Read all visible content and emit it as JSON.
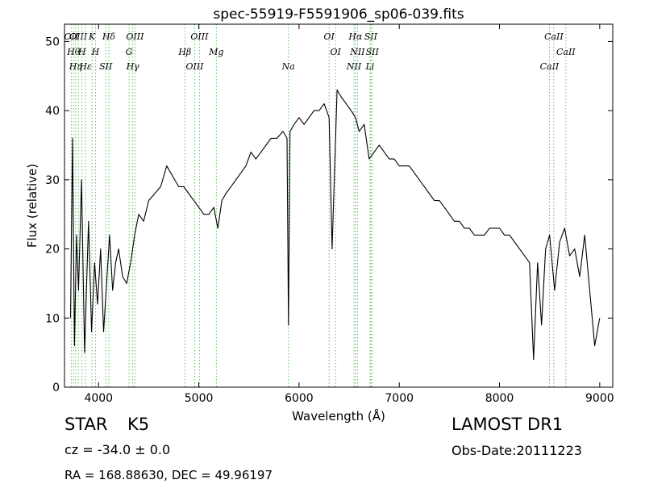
{
  "chart_data": {
    "type": "line",
    "title": "spec-55919-F5591906_sp06-039.fits",
    "xlabel": "Wavelength (Å)",
    "ylabel": "Flux (relative)",
    "xlim": [
      3660,
      9130
    ],
    "ylim": [
      0,
      52.5
    ],
    "xticks": [
      4000,
      5000,
      6000,
      7000,
      8000,
      9000
    ],
    "yticks": [
      0,
      10,
      20,
      30,
      40,
      50
    ],
    "grid": false,
    "line_color": "#000000",
    "marker_color": "#66bb66",
    "series": [
      {
        "values_x": [
          3720,
          3740,
          3760,
          3780,
          3800,
          3830,
          3860,
          3900,
          3930,
          3960,
          3990,
          4020,
          4050,
          4080,
          4110,
          4140,
          4170,
          4200,
          4240,
          4280,
          4320,
          4360,
          4400,
          4450,
          4500,
          4560,
          4620,
          4680,
          4720,
          4760,
          4800,
          4850,
          4900,
          4950,
          5000,
          5050,
          5100,
          5150,
          5190,
          5230,
          5270,
          5320,
          5370,
          5420,
          5470,
          5520,
          5570,
          5620,
          5670,
          5720,
          5780,
          5840,
          5880,
          5895,
          5910,
          5950,
          6000,
          6050,
          6100,
          6150,
          6200,
          6250,
          6300,
          6330,
          6380,
          6420,
          6470,
          6520,
          6563,
          6600,
          6650,
          6700,
          6750,
          6800,
          6850,
          6900,
          6950,
          7000,
          7050,
          7100,
          7150,
          7200,
          7250,
          7300,
          7350,
          7400,
          7450,
          7500,
          7550,
          7600,
          7650,
          7700,
          7750,
          7800,
          7850,
          7900,
          7950,
          8000,
          8050,
          8100,
          8150,
          8200,
          8250,
          8300,
          8340,
          8380,
          8420,
          8460,
          8500,
          8550,
          8600,
          8650,
          8700,
          8750,
          8800,
          8850,
          8900,
          8950,
          9000
        ],
        "values_y": [
          10,
          36,
          6,
          22,
          14,
          30,
          5,
          24,
          8,
          18,
          12,
          20,
          8,
          15,
          22,
          14,
          18,
          20,
          16,
          15,
          18,
          22,
          25,
          24,
          27,
          28,
          29,
          32,
          31,
          30,
          29,
          29,
          28,
          27,
          26,
          25,
          25,
          26,
          23,
          27,
          28,
          29,
          30,
          31,
          32,
          34,
          33,
          34,
          35,
          36,
          36,
          37,
          36,
          9,
          37,
          38,
          39,
          38,
          39,
          40,
          40,
          41,
          39,
          20,
          43,
          42,
          41,
          40,
          39,
          37,
          38,
          33,
          34,
          35,
          34,
          33,
          33,
          32,
          32,
          32,
          31,
          30,
          29,
          28,
          27,
          27,
          26,
          25,
          24,
          24,
          23,
          23,
          22,
          22,
          22,
          23,
          23,
          23,
          22,
          22,
          21,
          20,
          19,
          18,
          4,
          18,
          9,
          20,
          22,
          14,
          21,
          23,
          19,
          20,
          16,
          22,
          14,
          6,
          10
        ]
      }
    ],
    "markers": [
      {
        "x": 3727,
        "label": "OII"
      },
      {
        "x": 3750,
        "label": "Hθ"
      },
      {
        "x": 3771,
        "label": "Hη"
      },
      {
        "x": 3798,
        "label": "OIII"
      },
      {
        "x": 3835,
        "label": "H"
      },
      {
        "x": 3870,
        "label": "Hε"
      },
      {
        "x": 3934,
        "label": "K"
      },
      {
        "x": 3969,
        "label": "H"
      },
      {
        "x": 4072,
        "label": "SII"
      },
      {
        "x": 4102,
        "label": "Hδ"
      },
      {
        "x": 4304,
        "label": "G"
      },
      {
        "x": 4341,
        "label": "Hγ"
      },
      {
        "x": 4363,
        "label": "OIII"
      },
      {
        "x": 4861,
        "label": "Hβ"
      },
      {
        "x": 4959,
        "label": "OIII"
      },
      {
        "x": 5007,
        "label": "OIII"
      },
      {
        "x": 5175,
        "label": "Mg"
      },
      {
        "x": 5894,
        "label": "Na"
      },
      {
        "x": 6300,
        "label": "OI"
      },
      {
        "x": 6364,
        "label": "OI"
      },
      {
        "x": 6548,
        "label": "NII"
      },
      {
        "x": 6563,
        "label": "Hα"
      },
      {
        "x": 6583,
        "label": "NII"
      },
      {
        "x": 6708,
        "label": "Li"
      },
      {
        "x": 6716,
        "label": "SII"
      },
      {
        "x": 6731,
        "label": "SII"
      },
      {
        "x": 8498,
        "label": "CaII"
      },
      {
        "x": 8542,
        "label": "CaII"
      },
      {
        "x": 8662,
        "label": "CaII"
      }
    ]
  },
  "info": {
    "obj_class": "STAR",
    "subclass": "K5",
    "survey": "LAMOST DR1",
    "cz": "cz = -34.0 ± 0.0",
    "obs_date": "Obs-Date:20111223",
    "radec": "RA = 168.88630, DEC = 49.96197"
  }
}
